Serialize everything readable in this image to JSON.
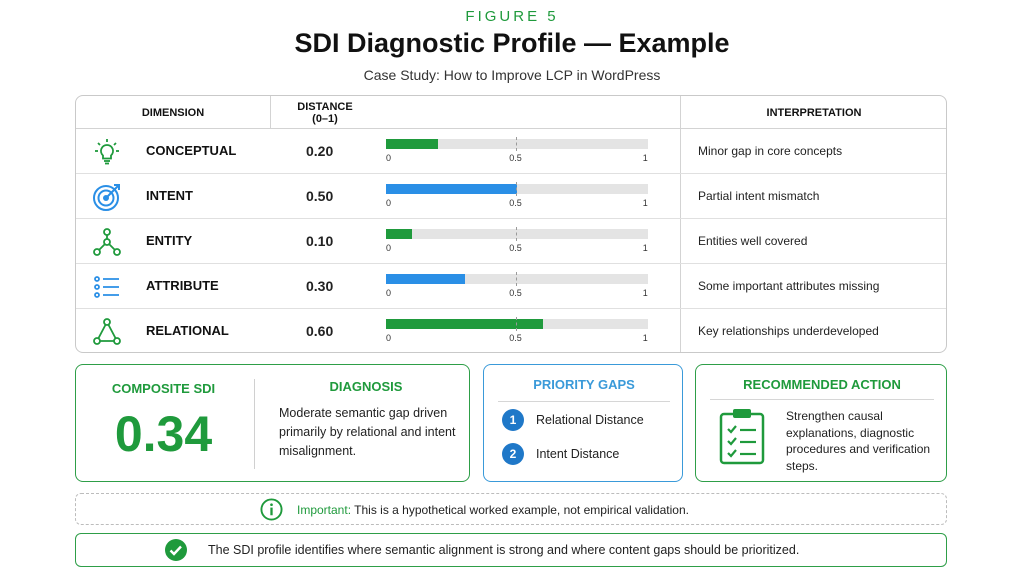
{
  "figure_label": "FIGURE 5",
  "title": "SDI Diagnostic Profile — Example",
  "subtitle": "Case Study: How to Improve LCP in WordPress",
  "table": {
    "headers": {
      "dimension": "DIMENSION",
      "distance": "DISTANCE",
      "distance_range": "(0–1)",
      "interpretation": "INTERPRETATION"
    },
    "tick_labels": [
      "0",
      "0.5",
      "1"
    ]
  },
  "chart_data": {
    "type": "bar",
    "orientation": "horizontal",
    "xlim": [
      0,
      1
    ],
    "xticks": [
      0,
      0.5,
      1
    ],
    "rows": [
      {
        "dimension": "CONCEPTUAL",
        "value": 0.2,
        "display": "0.20",
        "color": "#1f9a3c",
        "interpretation": "Minor gap in core concepts",
        "icon": "lightbulb-icon"
      },
      {
        "dimension": "INTENT",
        "value": 0.5,
        "display": "0.50",
        "color": "#2a8fe6",
        "interpretation": "Partial intent mismatch",
        "icon": "target-icon"
      },
      {
        "dimension": "ENTITY",
        "value": 0.1,
        "display": "0.10",
        "color": "#1f9a3c",
        "interpretation": "Entities well covered",
        "icon": "network-icon"
      },
      {
        "dimension": "ATTRIBUTE",
        "value": 0.3,
        "display": "0.30",
        "color": "#2a8fe6",
        "interpretation": "Some important attributes missing",
        "icon": "list-icon"
      },
      {
        "dimension": "RELATIONAL",
        "value": 0.6,
        "display": "0.60",
        "color": "#1f9a3c",
        "interpretation": "Key relationships underdeveloped",
        "icon": "triangle-nodes-icon"
      }
    ]
  },
  "composite": {
    "label": "COMPOSITE SDI",
    "value": "0.34"
  },
  "diagnosis": {
    "title": "DIAGNOSIS",
    "text": "Moderate semantic gap driven primarily by relational and intent misalignment."
  },
  "priority_gaps": {
    "title": "PRIORITY GAPS",
    "items": [
      {
        "num": "1",
        "label": "Relational Distance"
      },
      {
        "num": "2",
        "label": "Intent Distance"
      }
    ]
  },
  "recommended_action": {
    "title": "RECOMMENDED ACTION",
    "text": "Strengthen causal explanations, diagnostic procedures and verification steps.",
    "icon": "clipboard-checklist-icon"
  },
  "note": {
    "icon": "info-icon",
    "strong": "Important:",
    "text": " This is a hypothetical worked example, not empirical validation."
  },
  "conclusion": {
    "icon": "check-circle-icon",
    "text": "The SDI profile identifies where semantic alignment is strong and where content gaps should be prioritized."
  },
  "colors": {
    "green": "#1f9a3c",
    "blue": "#2a8fe6",
    "panel_green": "#2e9e48",
    "panel_blue": "#3a9ad9"
  }
}
